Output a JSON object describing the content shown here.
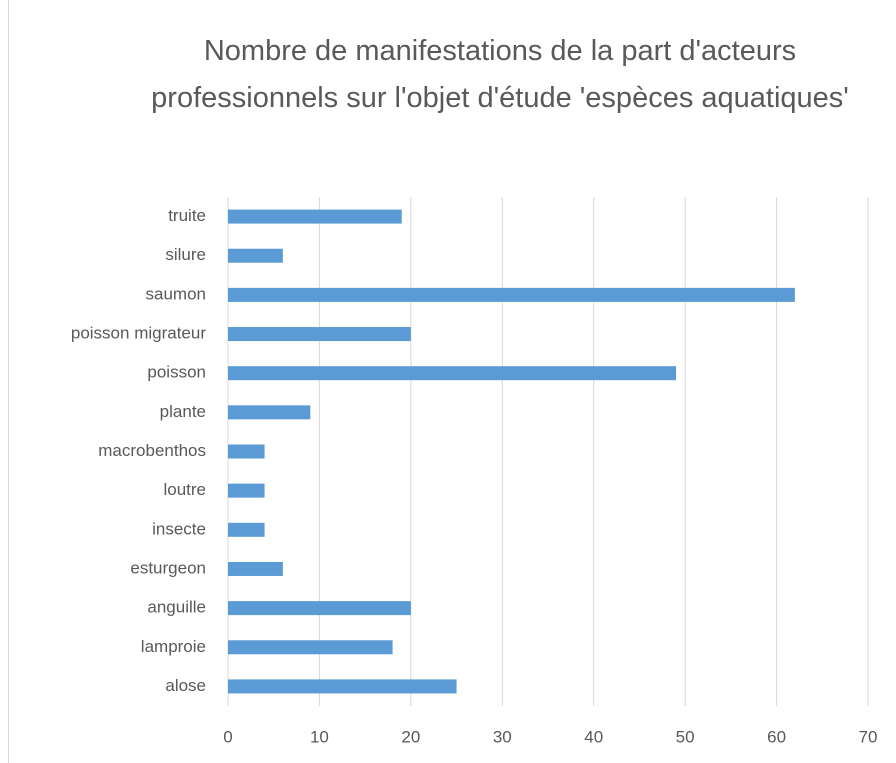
{
  "chart_data": {
    "type": "bar",
    "orientation": "horizontal",
    "title": "Nombre de manifestations de la part d'acteurs professionnels sur l'objet d'étude 'espèces aquatiques'",
    "categories": [
      "truite",
      "silure",
      "saumon",
      "poisson migrateur",
      "poisson",
      "plante",
      "macrobenthos",
      "loutre",
      "insecte",
      "esturgeon",
      "anguille",
      "lamproie",
      "alose"
    ],
    "values": [
      19,
      6,
      62,
      20,
      49,
      9,
      4,
      4,
      4,
      6,
      20,
      18,
      25
    ],
    "color": "#5b9bd5",
    "xlim": [
      0,
      70
    ],
    "xticks": [
      0,
      10,
      20,
      30,
      40,
      50,
      60,
      70
    ],
    "grid": true
  }
}
